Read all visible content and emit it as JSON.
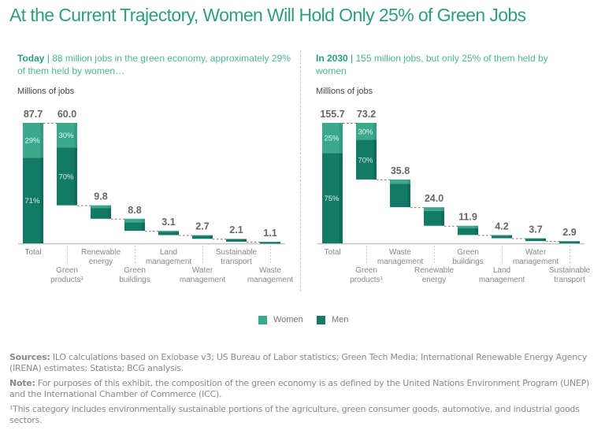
{
  "title": "At the Current Trajectory, Women Will Hold Only 25% of Green Jobs",
  "colors": {
    "women": "#3aa98c",
    "men": "#137a66",
    "accent": "#2e9e7f"
  },
  "legend": {
    "women": "Women",
    "men": "Men"
  },
  "notes": {
    "sources_label": "Sources:",
    "sources_text": " ILO calculations based on Exiobase v3; US Bureau of Labor statistics; Green Tech Media; International Renewable Energy Agency (IRENA) estimates; Statista; BCG analysis.",
    "note_label": "Note:",
    "note_text": " For purposes of this exhibit, the composition of the green economy is as defined by the United Nations Environment Program (UNEP) and the International Chamber of Commerce (ICC).",
    "footnote": "¹This category includes environmentally sustainable portions of the agriculture, green consumer goods, automotive, and industrial goods sectors."
  },
  "chart_data": [
    {
      "type": "waterfall",
      "panel": "today",
      "heading_bold": "Today",
      "heading_text": "88 million jobs in the green economy, approximately 29% of them held by women…",
      "ylabel": "Millions of jobs",
      "categories": [
        "Total",
        "Green products¹",
        "Renewable energy",
        "Green buildings",
        "Land management",
        "Water management",
        "Sustainable transport",
        "Waste management"
      ],
      "values": [
        87.7,
        60.0,
        9.8,
        8.8,
        3.1,
        2.7,
        2.1,
        1.1
      ],
      "labels": [
        "87.7",
        "60.0",
        "9.8",
        "8.8",
        "3.1",
        "2.7",
        "2.1",
        "1.1"
      ],
      "women_share": [
        0.29,
        0.3,
        0.2,
        0.3,
        0.2,
        0.2,
        0.15,
        0.15
      ],
      "pct_labels": {
        "0": [
          "29%",
          "71%"
        ],
        "1": [
          "30%",
          "70%"
        ]
      },
      "series": [
        {
          "name": "Women"
        },
        {
          "name": "Men"
        }
      ],
      "legend_position": "bottom-center"
    },
    {
      "type": "waterfall",
      "panel": "2030",
      "heading_bold": "In 2030",
      "heading_text": "155 million jobs, but only 25% of them held by women",
      "ylabel": "Millions of jobs",
      "categories": [
        "Total",
        "Green products¹",
        "Waste management",
        "Renewable energy",
        "Green buildings",
        "Land management",
        "Water management",
        "Sustainable transport"
      ],
      "values": [
        155.7,
        73.2,
        35.8,
        24.0,
        11.9,
        4.2,
        3.7,
        2.9
      ],
      "labels": [
        "155.7",
        "73.2",
        "35.8",
        "24.0",
        "11.9",
        "4.2",
        "3.7",
        "2.9"
      ],
      "women_share": [
        0.25,
        0.3,
        0.15,
        0.2,
        0.25,
        0.2,
        0.15,
        0.15
      ],
      "pct_labels": {
        "0": [
          "25%",
          "75%"
        ],
        "1": [
          "30%",
          "70%"
        ]
      },
      "series": [
        {
          "name": "Women"
        },
        {
          "name": "Men"
        }
      ],
      "legend_position": "bottom-center"
    }
  ]
}
